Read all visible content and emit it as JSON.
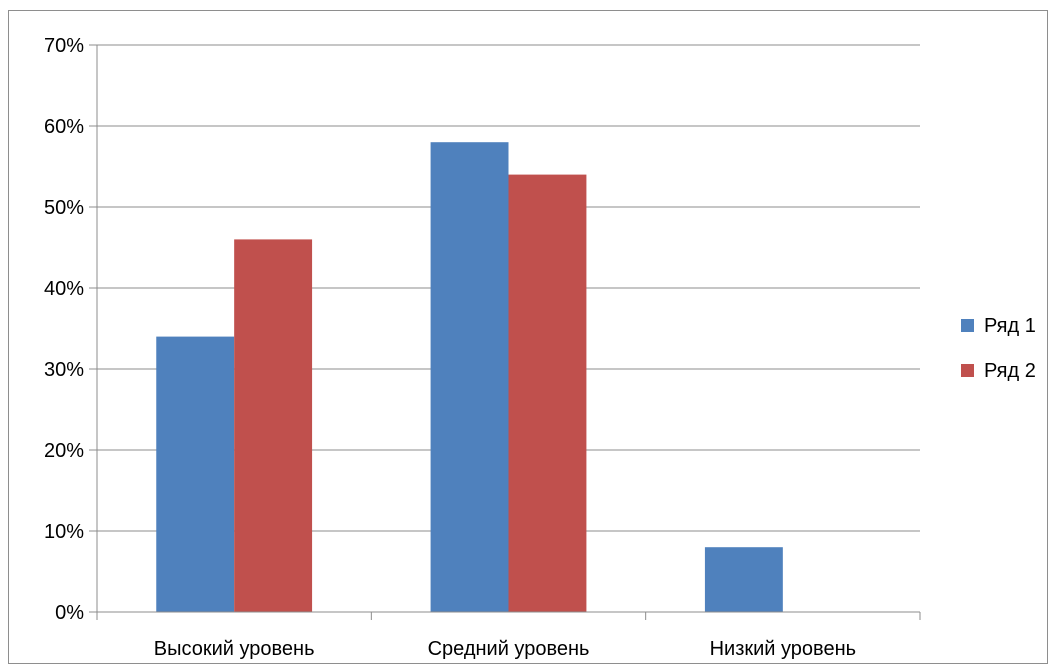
{
  "chart_data": {
    "type": "bar",
    "categories": [
      "Высокий уровень",
      "Средний уровень",
      "Низкий уровень"
    ],
    "series": [
      {
        "name": "Ряд 1",
        "values": [
          34,
          58,
          8
        ],
        "color": "#4F81BD"
      },
      {
        "name": "Ряд 2",
        "values": [
          46,
          54,
          0
        ],
        "color": "#C0504D"
      }
    ],
    "ylim": [
      0,
      70
    ],
    "yticks": [
      0,
      10,
      20,
      30,
      40,
      50,
      60,
      70
    ],
    "ytick_labels": [
      "0%",
      "10%",
      "20%",
      "30%",
      "40%",
      "50%",
      "60%",
      "70%"
    ],
    "grid": true,
    "legend_position": "right",
    "title": "",
    "xlabel": "",
    "ylabel": ""
  }
}
